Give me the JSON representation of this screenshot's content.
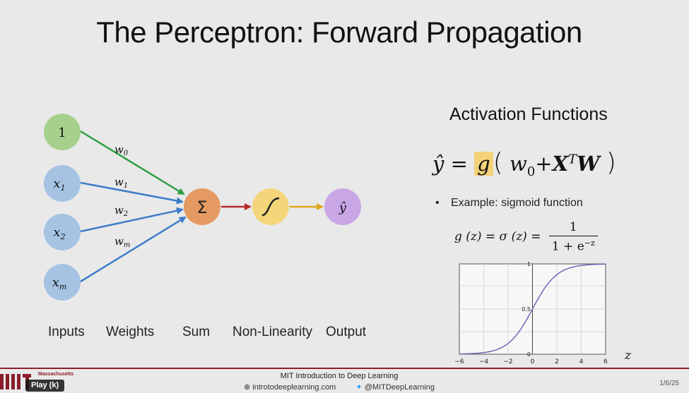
{
  "slide": {
    "title": "The Perceptron: Forward Propagation"
  },
  "network": {
    "inputs": [
      "1",
      "x1",
      "x2",
      "xm"
    ],
    "weights": [
      "w0",
      "w1",
      "w2",
      "wm"
    ],
    "sum_symbol": "Σ",
    "output_symbol": "ŷ",
    "labels": {
      "inputs": "Inputs",
      "weights": "Weights",
      "sum": "Sum",
      "nonlinearity": "Non-Linearity",
      "output": "Output"
    },
    "colors": {
      "input_one": "#a8d08d",
      "input_x": "#a6c3e3",
      "sum": "#e59a62",
      "nonlinearity": "#f4d67a",
      "output": "#c9a6e6",
      "edge_w0": "#2f9e44",
      "edge_wi": "#3d7cc9",
      "edge_sum": "#b8282c",
      "edge_nl": "#e0a81a"
    }
  },
  "activation": {
    "title": "Activation Functions",
    "equation": {
      "yhat": "ŷ",
      "equals": "=",
      "g": "g",
      "open": "(",
      "w0": "w",
      "w0_sub": "0",
      "plus": "+",
      "X": "X",
      "T": "T",
      "W": "W",
      "close": ")"
    },
    "bullet": "Example: sigmoid function",
    "sigmoid_eq": {
      "lhs": "g (z) = σ (z) =",
      "numerator": "1",
      "denominator": "1 + e",
      "exponent": "−z"
    },
    "plot": {
      "x_ticks": [
        "−6",
        "−4",
        "−2",
        "0",
        "2",
        "4",
        "6"
      ],
      "y_ticks": [
        "0",
        "0.5",
        "1"
      ],
      "x_axis_label": "z",
      "curve_color": "#6e6bb8"
    }
  },
  "footer": {
    "course": "MIT Introduction to Deep Learning",
    "site": "introtodeeplearning.com",
    "twitter": "@MITDeepLearning",
    "page": "1/6/25",
    "institution": "Massachusetts"
  },
  "player": {
    "tooltip": "Play (k)"
  }
}
